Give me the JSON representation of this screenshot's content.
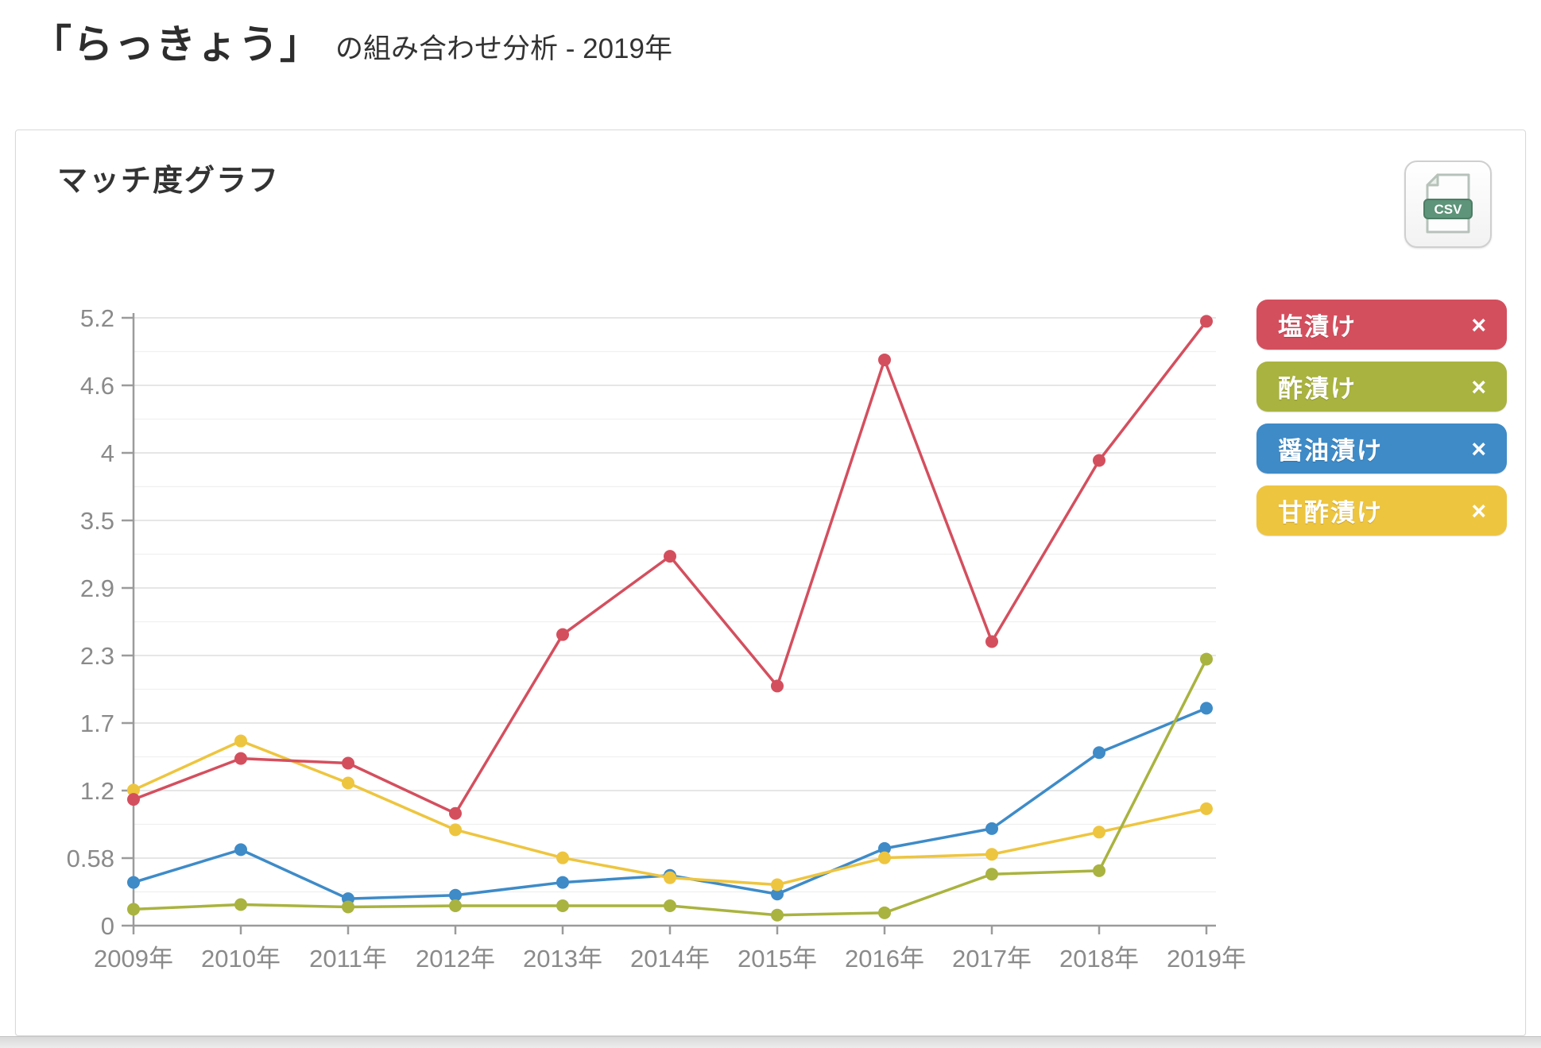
{
  "page_title": {
    "keyword": "「らっきょう」",
    "rest": "の組み合わせ分析 - 2019年"
  },
  "card": {
    "title": "マッチ度グラフ"
  },
  "csv_button": {
    "label": "CSV"
  },
  "legend_close_glyph": "×",
  "colors": {
    "red": "#d44f5e",
    "olive": "#a9b33f",
    "blue": "#3e8bc8",
    "yellow": "#eec53f",
    "grid_major": "#e3e3e3",
    "grid_minor": "#f0f0f0",
    "axis": "#9b9b9b",
    "tick_text": "#8a8a8a",
    "csv_green": "#5e9479"
  },
  "chart_data": {
    "type": "line",
    "title": "マッチ度グラフ",
    "categories": [
      "2009年",
      "2010年",
      "2011年",
      "2012年",
      "2013年",
      "2014年",
      "2015年",
      "2016年",
      "2017年",
      "2018年",
      "2019年"
    ],
    "y_tick_labels": [
      "0",
      "0.58",
      "1.2",
      "1.7",
      "2.3",
      "2.9",
      "3.5",
      "4",
      "4.6",
      "5.2"
    ],
    "ylim": [
      0,
      5.2
    ],
    "grid": true,
    "legend_position": "right",
    "series": [
      {
        "name": "塩漬け",
        "color": "#d44f5e",
        "values": [
          1.08,
          1.43,
          1.39,
          0.96,
          2.49,
          3.16,
          2.05,
          4.84,
          2.43,
          3.98,
          5.17
        ]
      },
      {
        "name": "酢漬け",
        "color": "#a9b33f",
        "values": [
          0.14,
          0.18,
          0.16,
          0.17,
          0.17,
          0.17,
          0.09,
          0.11,
          0.44,
          0.47,
          2.28
        ]
      },
      {
        "name": "醤油漬け",
        "color": "#3e8bc8",
        "values": [
          0.37,
          0.65,
          0.23,
          0.26,
          0.37,
          0.43,
          0.27,
          0.66,
          0.83,
          1.48,
          1.86
        ]
      },
      {
        "name": "甘酢漬け",
        "color": "#eec53f",
        "values": [
          1.16,
          1.58,
          1.22,
          0.82,
          0.58,
          0.41,
          0.35,
          0.58,
          0.61,
          0.8,
          1.0
        ]
      }
    ]
  }
}
